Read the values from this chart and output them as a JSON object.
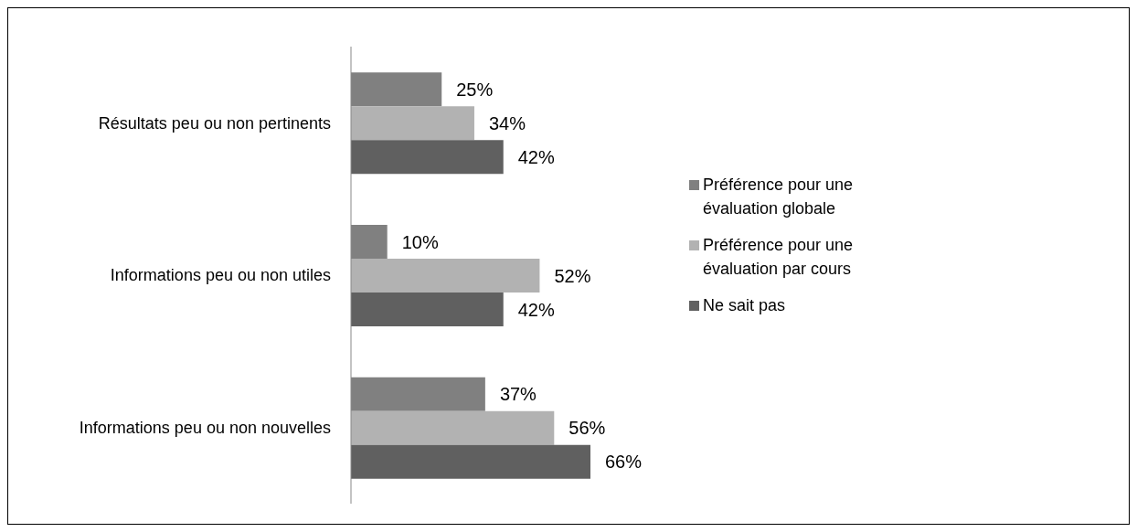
{
  "chart_data": {
    "type": "bar",
    "orientation": "horizontal",
    "legend": "right",
    "categories": [
      "Résultats peu ou non pertinents",
      "Informations peu ou non utiles",
      "Informations peu ou non nouvelles"
    ],
    "series": [
      {
        "name": "Préférence pour une évaluation globale",
        "color": "#808080",
        "values": [
          25,
          10,
          37
        ],
        "value_labels": [
          "25%",
          "10%",
          "37%"
        ]
      },
      {
        "name": "Préférence pour une évaluation par cours",
        "color": "#b2b2b2",
        "values": [
          34,
          52,
          56
        ],
        "value_labels": [
          "34%",
          "52%",
          "56%"
        ]
      },
      {
        "name": "Ne sait pas",
        "color": "#606060",
        "values": [
          42,
          42,
          66
        ],
        "value_labels": [
          "42%",
          "42%",
          "66%"
        ]
      }
    ]
  }
}
